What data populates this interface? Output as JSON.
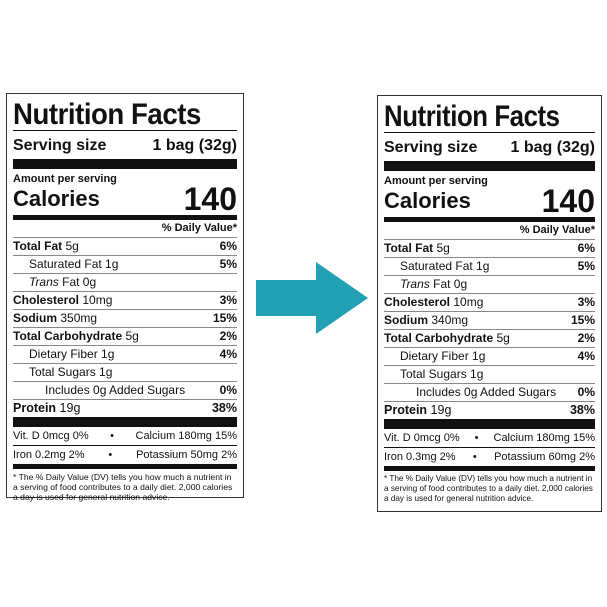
{
  "arrow_color": "#22a0b4",
  "labels": [
    {
      "title": "Nutrition Facts",
      "serving_label": "Serving size",
      "serving_value": "1 bag (32g)",
      "amount_per_serving": "Amount per serving",
      "calories_label": "Calories",
      "calories_value": "140",
      "dv_header": "% Daily Value*",
      "total_fat": {
        "label": "Total Fat",
        "amount": "5g",
        "dv": "6%"
      },
      "saturated_fat": {
        "label": "Saturated Fat 1g",
        "dv": "5%"
      },
      "trans_fat": {
        "label_italic": "Trans",
        "label_rest": " Fat 0g"
      },
      "cholesterol": {
        "label": "Cholesterol",
        "amount": "10mg",
        "dv": "3%"
      },
      "sodium": {
        "label": "Sodium",
        "amount": "350mg",
        "dv": "15%"
      },
      "total_carb": {
        "label": "Total Carbohydrate",
        "amount": "5g",
        "dv": "2%"
      },
      "dietary_fiber": {
        "label": "Dietary Fiber 1g",
        "dv": "4%"
      },
      "total_sugars": {
        "label": "Total Sugars 1g"
      },
      "added_sugars": {
        "label": "Includes 0g Added Sugars",
        "dv": "0%"
      },
      "protein": {
        "label": "Protein",
        "amount": "19g",
        "dv": "38%"
      },
      "vit_d": "Vit. D 0mcg 0%",
      "calcium": "Calcium 180mg 15%",
      "iron": "Iron 0.2mg 2%",
      "potassium": "Potassium 50mg 2%",
      "bullet": "•",
      "footnote": "* The % Daily Value (DV) tells you how much a nutrient in a serving of food contributes to a daily diet. 2,000 calories a day is used for general nutrition advice."
    },
    {
      "title": "Nutrition Facts",
      "serving_label": "Serving size",
      "serving_value": "1 bag (32g)",
      "amount_per_serving": "Amount per serving",
      "calories_label": "Calories",
      "calories_value": "140",
      "dv_header": "% Daily Value*",
      "total_fat": {
        "label": "Total Fat",
        "amount": "5g",
        "dv": "6%"
      },
      "saturated_fat": {
        "label": "Saturated Fat 1g",
        "dv": "5%"
      },
      "trans_fat": {
        "label_italic": "Trans",
        "label_rest": " Fat 0g"
      },
      "cholesterol": {
        "label": "Cholesterol",
        "amount": "10mg",
        "dv": "3%"
      },
      "sodium": {
        "label": "Sodium",
        "amount": "340mg",
        "dv": "15%"
      },
      "total_carb": {
        "label": "Total Carbohydrate",
        "amount": "5g",
        "dv": "2%"
      },
      "dietary_fiber": {
        "label": "Dietary Fiber 1g",
        "dv": "4%"
      },
      "total_sugars": {
        "label": "Total Sugars 1g"
      },
      "added_sugars": {
        "label": "Includes 0g Added Sugars",
        "dv": "0%"
      },
      "protein": {
        "label": "Protein",
        "amount": "19g",
        "dv": "38%"
      },
      "vit_d": "Vit. D 0mcg 0%",
      "calcium": "Calcium 180mg 15%",
      "iron": "Iron 0.3mg 2%",
      "potassium": "Potassium 60mg 2%",
      "bullet": "•",
      "footnote": "* The % Daily Value (DV) tells you how much a nutrient in a serving of food contributes to a daily diet. 2,000 calories a day is used for general nutrition advice."
    }
  ]
}
